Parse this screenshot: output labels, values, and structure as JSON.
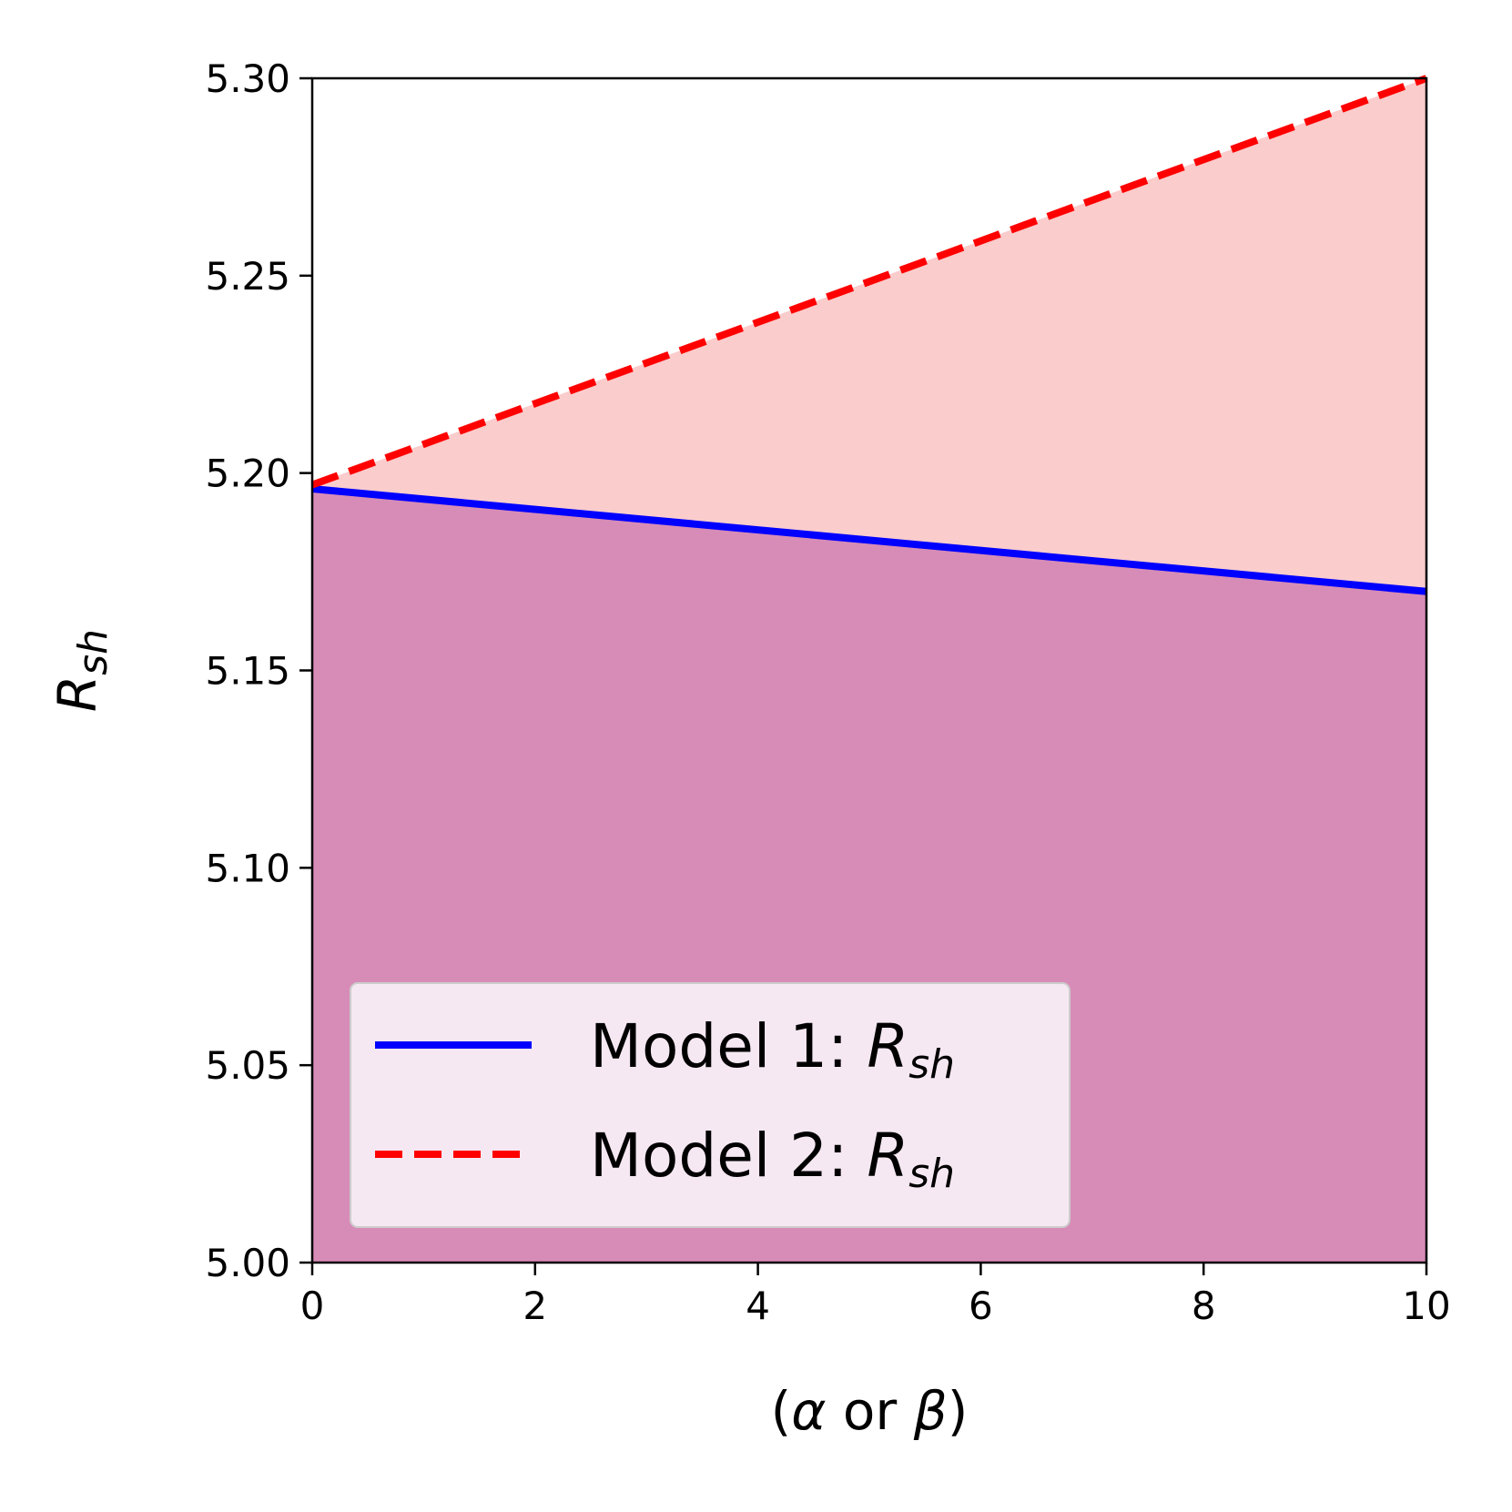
{
  "chart_data": {
    "type": "area",
    "title": "",
    "xlabel": {
      "prefix": "(",
      "alpha": "α",
      "middle": " or ",
      "beta": "β",
      "suffix": ")"
    },
    "ylabel": {
      "main": "R",
      "sub": "sh"
    },
    "xlim": [
      0,
      10
    ],
    "ylim": [
      5.0,
      5.3
    ],
    "x_ticks": [
      0,
      2,
      4,
      6,
      8,
      10
    ],
    "x_tick_labels": [
      "0",
      "2",
      "4",
      "6",
      "8",
      "10"
    ],
    "y_ticks": [
      5.0,
      5.05,
      5.1,
      5.15,
      5.2,
      5.25,
      5.3
    ],
    "y_tick_labels": [
      "5.00",
      "5.05",
      "5.10",
      "5.15",
      "5.20",
      "5.25",
      "5.30"
    ],
    "grid": false,
    "legend_position": "lower-left",
    "series": [
      {
        "name": "Model 1: R_sh",
        "legend_prefix": "Model 1: ",
        "legend_main": "R",
        "legend_sub": "sh",
        "style": "solid",
        "color": "#0000ff",
        "fill_color": "#c060a8",
        "fill_opacity": 0.6,
        "x": [
          0,
          10
        ],
        "y": [
          5.196,
          5.17
        ]
      },
      {
        "name": "Model 2: R_sh",
        "legend_prefix": "Model 2: ",
        "legend_main": "R",
        "legend_sub": "sh",
        "style": "dashed",
        "color": "#ff0000",
        "fill_color": "#f8b0b0",
        "fill_opacity": 0.65,
        "x": [
          0,
          10
        ],
        "y": [
          5.197,
          5.3
        ]
      }
    ]
  }
}
